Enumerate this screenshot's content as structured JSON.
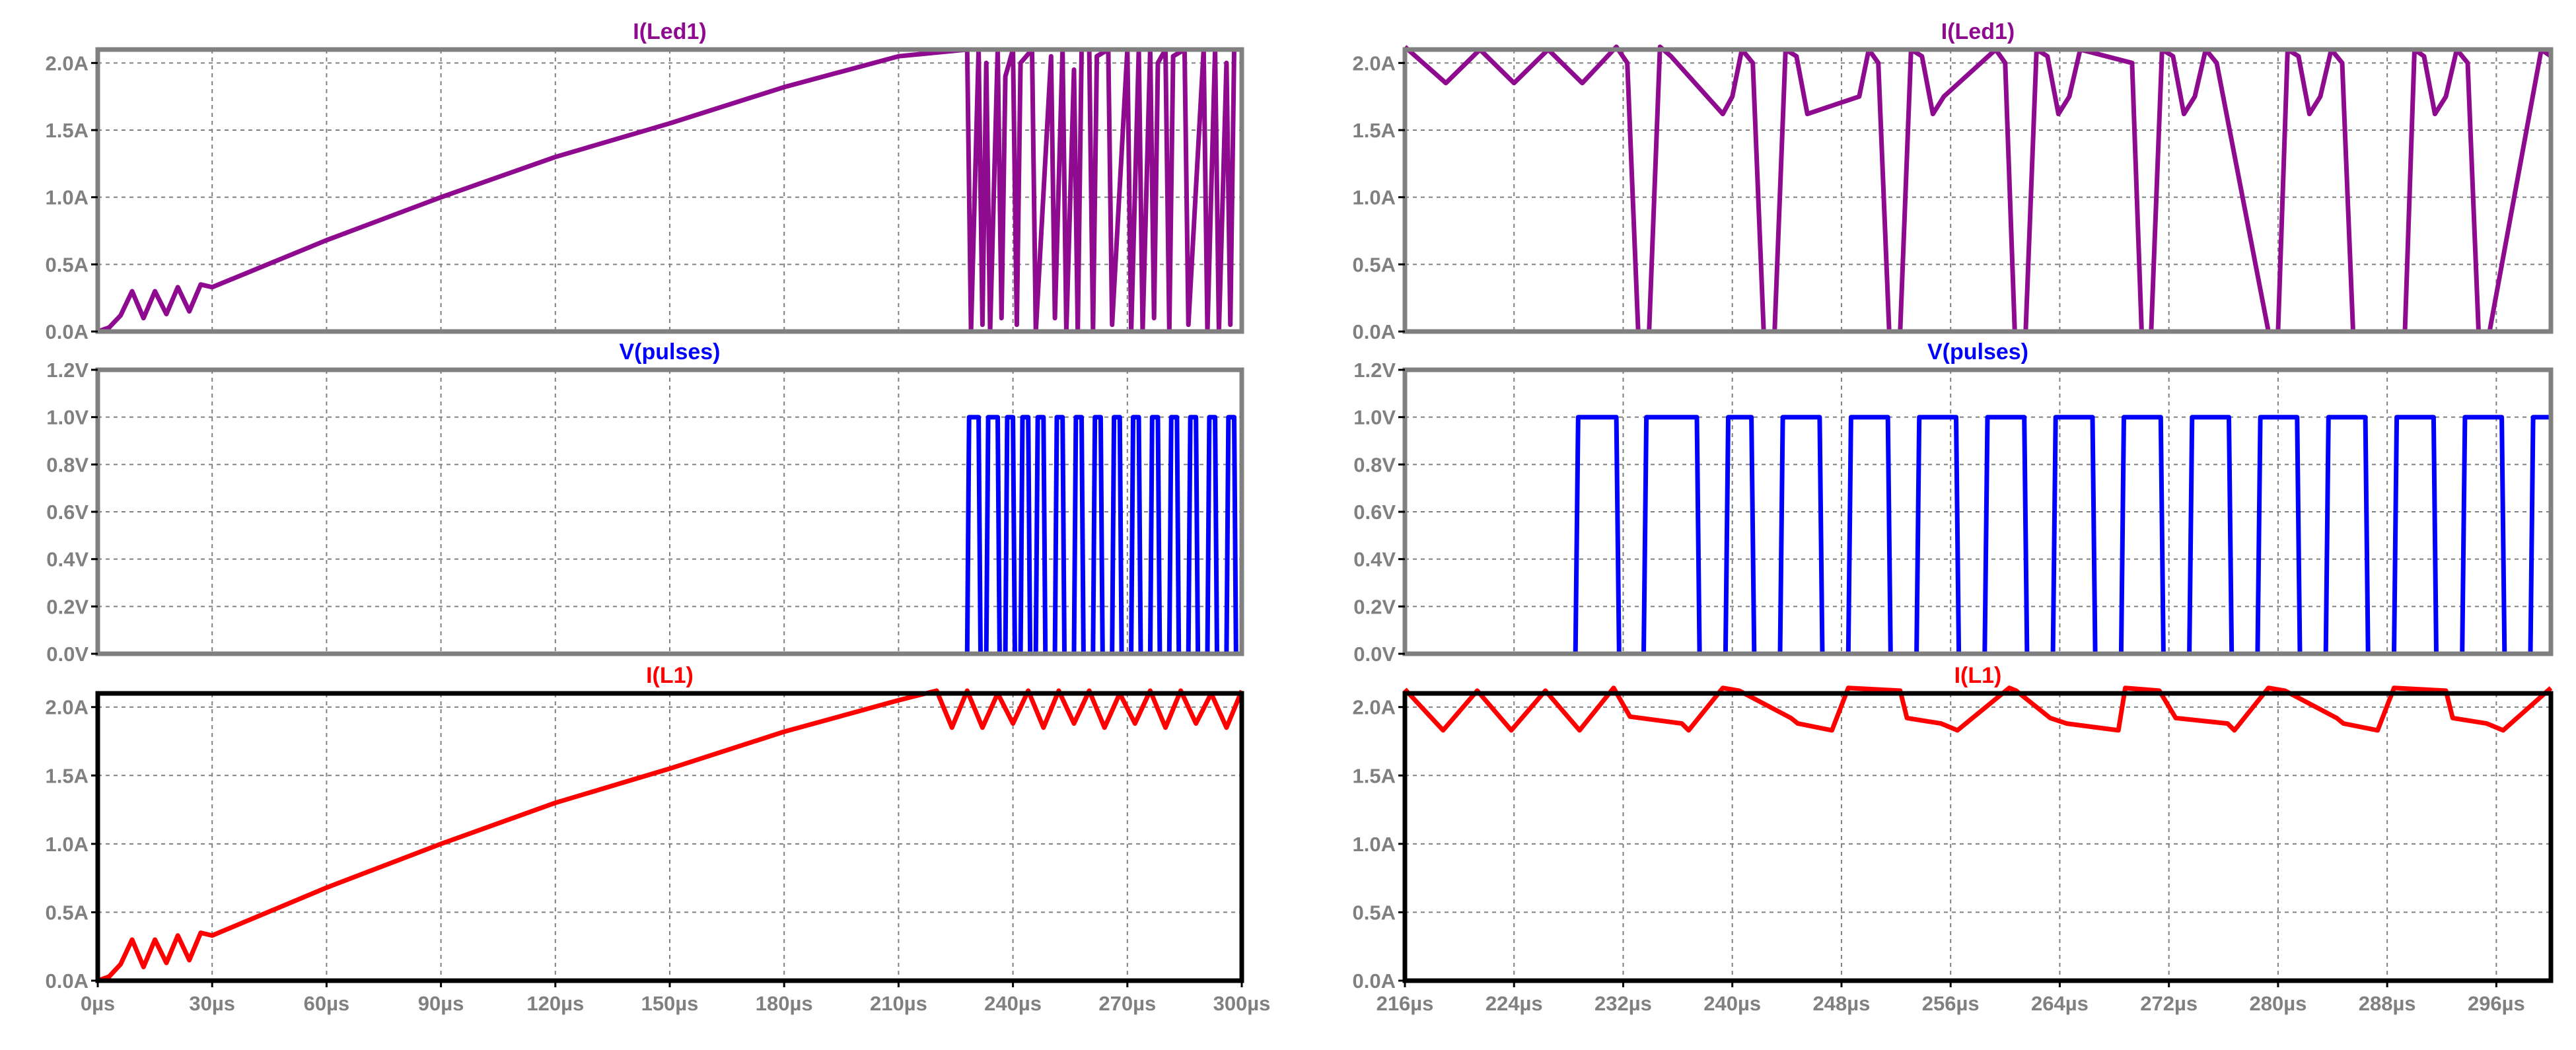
{
  "colors": {
    "led": "#8E0A8E",
    "pulses": "#0000FF",
    "l1": "#FF0000",
    "tick_text": "#808080",
    "grid": "#808080"
  },
  "chart_data": [
    {
      "type": "line",
      "title": "I(Led1)",
      "color": "#8E0A8E",
      "xlim": [
        0,
        300
      ],
      "ylim": [
        0,
        2.1
      ],
      "x_unit": "µs",
      "y_unit": "A",
      "grid": true,
      "y_ticks": [
        "0.0A",
        "0.5A",
        "1.0A",
        "1.5A",
        "2.0A"
      ],
      "series": [
        {
          "x": [
            0,
            3,
            6,
            9,
            12,
            15,
            18,
            21,
            24,
            27,
            30,
            60,
            90,
            120,
            150,
            180,
            210,
            228,
            229,
            231,
            232,
            233,
            234,
            236,
            237,
            238,
            240,
            241,
            242,
            245,
            246,
            250,
            251,
            253,
            254,
            256,
            257,
            258,
            260,
            261,
            262,
            265,
            266,
            270,
            271,
            273,
            274,
            276,
            277,
            278,
            280,
            281,
            282,
            285,
            286,
            290,
            291,
            293,
            294,
            296,
            297,
            298,
            300
          ],
          "y": [
            0,
            0.03,
            0.12,
            0.3,
            0.1,
            0.3,
            0.13,
            0.33,
            0.15,
            0.35,
            0.33,
            0.68,
            1.0,
            1.3,
            1.55,
            1.82,
            2.05,
            2.1,
            0,
            2.1,
            0.05,
            2.0,
            0,
            2.1,
            0.1,
            1.9,
            2.1,
            0.05,
            2.0,
            2.1,
            0,
            2.05,
            0.1,
            2.1,
            0,
            1.95,
            0,
            2.1,
            2.1,
            0,
            2.05,
            2.1,
            0.05,
            2.1,
            0,
            2.1,
            0,
            2.1,
            0.1,
            2.0,
            2.1,
            0,
            2.05,
            2.1,
            0.05,
            2.1,
            0,
            2.1,
            0,
            2.0,
            0.05,
            2.1,
            2.1
          ]
        }
      ]
    },
    {
      "type": "line",
      "title": "V(pulses)",
      "color": "#0000FF",
      "xlim": [
        0,
        300
      ],
      "ylim": [
        0,
        1.2
      ],
      "x_unit": "µs",
      "y_unit": "V",
      "grid": true,
      "y_ticks": [
        "0.0V",
        "0.2V",
        "0.4V",
        "0.6V",
        "0.8V",
        "1.0V",
        "1.2V"
      ],
      "series": [
        {
          "x": [
            0,
            228,
            228.5,
            231,
            231.5,
            233,
            233.5,
            236,
            236.5,
            238,
            238.5,
            240,
            240.5,
            242,
            242.5,
            244,
            244.5,
            246,
            246.5,
            248,
            248.5,
            251,
            251.5,
            253,
            253.5,
            256,
            256.5,
            258,
            258.5,
            261,
            261.5,
            263,
            263.5,
            266,
            266.5,
            268,
            268.5,
            271,
            271.5,
            273,
            273.5,
            276,
            276.5,
            278,
            278.5,
            281,
            281.5,
            283,
            283.5,
            286,
            286.5,
            288,
            288.5,
            291,
            291.5,
            293,
            293.5,
            296,
            296.5,
            298,
            298.5,
            300
          ],
          "y": [
            0,
            0,
            1,
            1,
            0,
            0,
            1,
            1,
            0,
            0,
            1,
            1,
            0,
            0,
            1,
            1,
            0,
            0,
            1,
            1,
            0,
            0,
            1,
            1,
            0,
            0,
            1,
            1,
            0,
            0,
            1,
            1,
            0,
            0,
            1,
            1,
            0,
            0,
            1,
            1,
            0,
            0,
            1,
            1,
            0,
            0,
            1,
            1,
            0,
            0,
            1,
            1,
            0,
            0,
            1,
            1,
            0,
            0,
            1,
            1,
            0,
            0
          ]
        }
      ]
    },
    {
      "type": "line",
      "title": "I(L1)",
      "color": "#FF0000",
      "xlim": [
        0,
        300
      ],
      "ylim": [
        0,
        2.1
      ],
      "x_unit": "µs",
      "y_unit": "A",
      "grid": true,
      "y_ticks": [
        "0.0A",
        "0.5A",
        "1.0A",
        "1.5A",
        "2.0A"
      ],
      "x_ticks": [
        "0µs",
        "30µs",
        "60µs",
        "90µs",
        "120µs",
        "150µs",
        "180µs",
        "210µs",
        "240µs",
        "270µs",
        "300µs"
      ],
      "series": [
        {
          "x": [
            0,
            3,
            6,
            9,
            12,
            15,
            18,
            21,
            24,
            27,
            30,
            60,
            90,
            120,
            150,
            180,
            210,
            220,
            224,
            228,
            232,
            236,
            240,
            244,
            248,
            252,
            256,
            260,
            264,
            268,
            272,
            276,
            280,
            284,
            288,
            292,
            296,
            300
          ],
          "y": [
            0,
            0.03,
            0.12,
            0.3,
            0.1,
            0.3,
            0.13,
            0.33,
            0.15,
            0.35,
            0.33,
            0.68,
            1.0,
            1.3,
            1.55,
            1.82,
            2.05,
            2.12,
            1.85,
            2.12,
            1.85,
            2.1,
            1.88,
            2.12,
            1.85,
            2.12,
            1.88,
            2.12,
            1.85,
            2.1,
            1.88,
            2.12,
            1.85,
            2.12,
            1.88,
            2.1,
            1.85,
            2.12
          ]
        }
      ]
    },
    {
      "type": "line",
      "title": "I(Led1)",
      "color": "#8E0A8E",
      "xlim": [
        216,
        300
      ],
      "ylim": [
        0,
        2.1
      ],
      "x_unit": "µs",
      "y_unit": "A",
      "grid": true,
      "y_ticks": [
        "0.0A",
        "0.5A",
        "1.0A",
        "1.5A",
        "2.0A"
      ],
      "series": [
        {
          "x": [
            216,
            219,
            221.5,
            224,
            226.5,
            229,
            231.5,
            232.3,
            233.1,
            233.9,
            234.7,
            235.5,
            239.3,
            240,
            240.7,
            241.5,
            242.3,
            243.1,
            243.9,
            244.7,
            245.5,
            249.3,
            250,
            250.7,
            251.5,
            252.3,
            253.1,
            253.9,
            254.7,
            255.5,
            259.3,
            260,
            260.7,
            261.5,
            262.3,
            263.1,
            263.9,
            264.7,
            265.5,
            269.3,
            270,
            270.7,
            271.5,
            272.3,
            273.1,
            273.9,
            274.7,
            275.5,
            279.3,
            280,
            280.7,
            281.5,
            282.3,
            283.1,
            283.9,
            284.7,
            285.5,
            289.3,
            290,
            290.7,
            291.5,
            292.3,
            293.1,
            293.9,
            294.7,
            295.5,
            299.3,
            300
          ],
          "y": [
            2.12,
            1.85,
            2.1,
            1.85,
            2.1,
            1.85,
            2.12,
            2.0,
            0,
            0,
            2.12,
            2.05,
            1.62,
            1.75,
            2.1,
            2.0,
            0,
            0,
            2.1,
            2.05,
            1.62,
            1.75,
            2.1,
            2.0,
            0,
            0,
            2.1,
            2.05,
            1.62,
            1.75,
            2.1,
            2.0,
            0,
            0,
            2.1,
            2.05,
            1.62,
            1.75,
            2.1,
            2.0,
            0,
            0,
            2.1,
            2.05,
            1.62,
            1.75,
            2.1,
            2.0,
            0,
            0,
            2.1,
            2.05,
            1.62,
            1.75,
            2.1,
            2.0,
            0,
            0,
            2.1,
            2.05,
            1.62,
            1.75,
            2.1,
            2.0,
            0,
            0,
            2.1,
            2.05
          ]
        }
      ]
    },
    {
      "type": "line",
      "title": "V(pulses)",
      "color": "#0000FF",
      "xlim": [
        216,
        300
      ],
      "ylim": [
        0,
        1.2
      ],
      "x_unit": "µs",
      "y_unit": "V",
      "grid": true,
      "y_ticks": [
        "0.0V",
        "0.2V",
        "0.4V",
        "0.6V",
        "0.8V",
        "1.0V",
        "1.2V"
      ],
      "series": [
        {
          "x": [
            216,
            228.5,
            228.7,
            231.5,
            231.7,
            233.5,
            233.7,
            237.4,
            237.6,
            239.5,
            239.7,
            241.4,
            241.6,
            243.5,
            243.7,
            246.4,
            246.6,
            248.5,
            248.7,
            251.4,
            251.6,
            253.5,
            253.7,
            256.4,
            256.6,
            258.5,
            258.7,
            261.4,
            261.6,
            263.5,
            263.7,
            266.4,
            266.6,
            268.5,
            268.7,
            271.4,
            271.6,
            273.5,
            273.7,
            276.4,
            276.6,
            278.5,
            278.7,
            281.4,
            281.6,
            283.5,
            283.7,
            286.4,
            286.6,
            288.5,
            288.7,
            291.4,
            291.6,
            293.5,
            293.7,
            296.4,
            296.6,
            298.5,
            298.7,
            300
          ],
          "y": [
            0,
            0,
            1,
            1,
            0,
            0,
            1,
            1,
            0,
            0,
            1,
            1,
            0,
            0,
            1,
            1,
            0,
            0,
            1,
            1,
            0,
            0,
            1,
            1,
            0,
            0,
            1,
            1,
            0,
            0,
            1,
            1,
            0,
            0,
            1,
            1,
            0,
            0,
            1,
            1,
            0,
            0,
            1,
            1,
            0,
            0,
            1,
            1,
            0,
            0,
            1,
            1,
            0,
            0,
            1,
            1,
            0,
            0,
            1,
            1
          ]
        }
      ]
    },
    {
      "type": "line",
      "title": "I(L1)",
      "color": "#FF0000",
      "xlim": [
        216,
        300
      ],
      "ylim": [
        0,
        2.1
      ],
      "x_unit": "µs",
      "y_unit": "A",
      "grid": true,
      "y_ticks": [
        "0.0A",
        "0.5A",
        "1.0A",
        "1.5A",
        "2.0A"
      ],
      "x_ticks": [
        "216µs",
        "224µs",
        "232µs",
        "240µs",
        "248µs",
        "256µs",
        "264µs",
        "272µs",
        "280µs",
        "288µs",
        "296µs"
      ],
      "series": [
        {
          "x": [
            216,
            218.8,
            221.3,
            223.8,
            226.3,
            228.8,
            231.3,
            232.5,
            236.3,
            236.8,
            239.3,
            240.5,
            244.3,
            244.8,
            247.3,
            248.5,
            252.3,
            252.8,
            255.3,
            256.5,
            260.3,
            260.8,
            263.3,
            264.5,
            268.3,
            268.8,
            271.3,
            272.5,
            276.3,
            276.8,
            279.3,
            280.5,
            284.3,
            284.8,
            287.3,
            288.5,
            292.3,
            292.8,
            295.3,
            296.5,
            300
          ],
          "y": [
            2.13,
            1.83,
            2.12,
            1.83,
            2.12,
            1.83,
            2.14,
            1.93,
            1.88,
            1.83,
            2.14,
            2.12,
            1.92,
            1.88,
            1.83,
            2.14,
            2.12,
            1.92,
            1.88,
            1.83,
            2.14,
            2.12,
            1.92,
            1.88,
            1.83,
            2.14,
            2.12,
            1.92,
            1.88,
            1.83,
            2.14,
            2.12,
            1.92,
            1.88,
            1.83,
            2.14,
            2.12,
            1.92,
            1.88,
            1.83,
            2.14
          ]
        }
      ]
    }
  ]
}
